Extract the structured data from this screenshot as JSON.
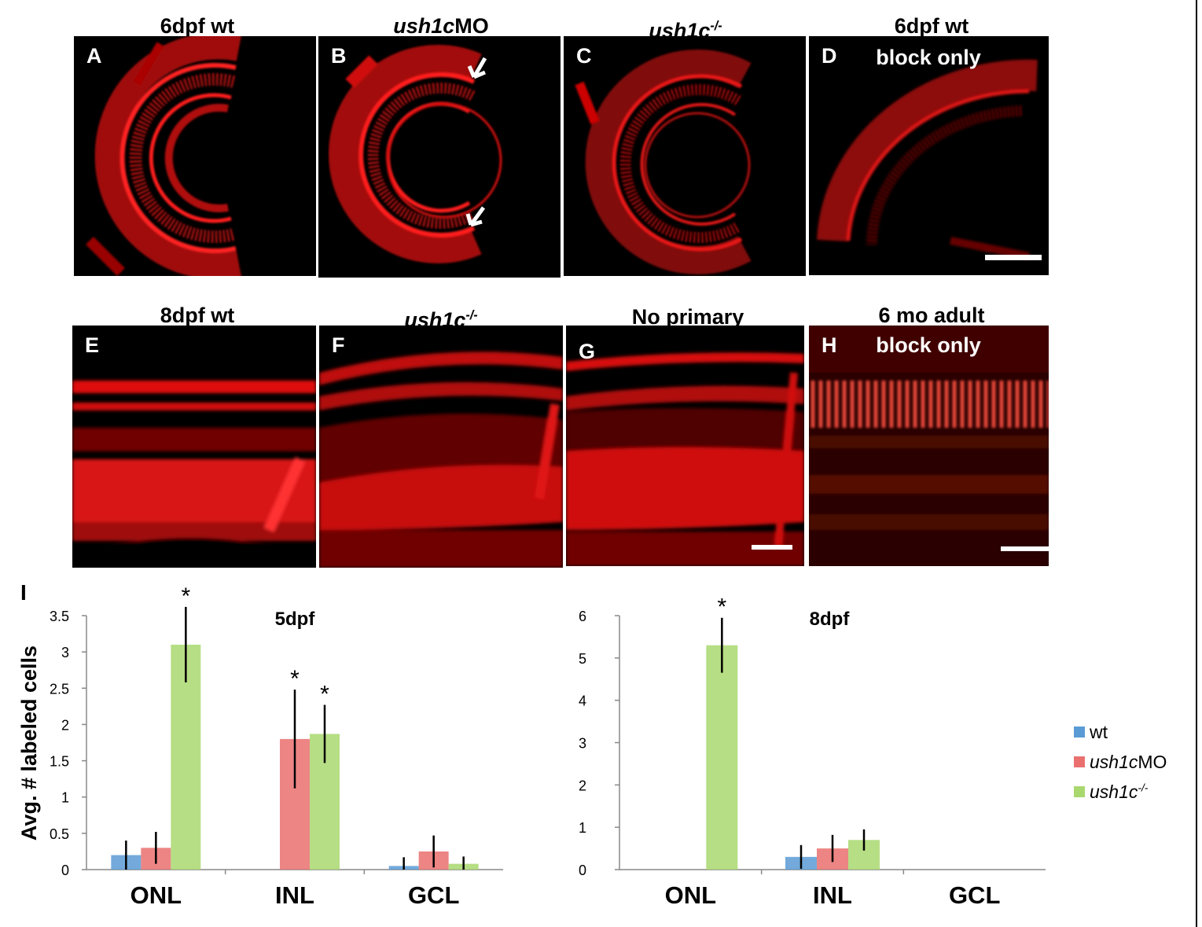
{
  "panels": [
    {
      "letter": "A",
      "title": "6dpf wt",
      "title_parts": [
        {
          "text": "6dpf wt",
          "italic": false
        }
      ],
      "overlay": ""
    },
    {
      "letter": "B",
      "title": "ush1cMO",
      "title_parts": [
        {
          "text": "ush1c",
          "italic": true
        },
        {
          "text": "MO",
          "italic": false
        }
      ],
      "overlay": ""
    },
    {
      "letter": "C",
      "title": "ush1c-/-",
      "title_parts": [
        {
          "text": "ush1c",
          "italic": true
        },
        {
          "text": "-/-",
          "italic": true,
          "sup": true
        }
      ],
      "overlay": ""
    },
    {
      "letter": "D",
      "title": "6dpf wt",
      "title_parts": [
        {
          "text": "6dpf wt",
          "italic": false
        }
      ],
      "overlay": "block only"
    },
    {
      "letter": "E",
      "title": "8dpf wt",
      "title_parts": [
        {
          "text": "8dpf wt",
          "italic": false
        }
      ],
      "overlay": ""
    },
    {
      "letter": "F",
      "title": "ush1c-/-",
      "title_parts": [
        {
          "text": "ush1c",
          "italic": true
        },
        {
          "text": "-/-",
          "italic": true,
          "sup": true
        }
      ],
      "overlay": ""
    },
    {
      "letter": "G",
      "title": "No primary",
      "title_parts": [
        {
          "text": "No primary",
          "italic": false
        }
      ],
      "overlay": ""
    },
    {
      "letter": "H",
      "title": "6 mo adult",
      "title_parts": [
        {
          "text": "6 mo adult",
          "italic": false
        }
      ],
      "overlay": "block only"
    }
  ],
  "figure_label_I": "I",
  "colors": {
    "wt": "#5b9bd5",
    "ush1cMO": "#e9706f",
    "ush1c_ko": "#a9d86e",
    "stain": "#e01010"
  },
  "chart_data": [
    {
      "type": "bar",
      "title": "5dpf",
      "ylabel": "Avg. # labeled cells",
      "categories": [
        "ONL",
        "INL",
        "GCL"
      ],
      "ylim": [
        0,
        3.5
      ],
      "yticks": [
        "0",
        "0.5",
        "1",
        "1.5",
        "2",
        "2.5",
        "3",
        "3.5"
      ],
      "series": [
        {
          "name": "wt",
          "values": [
            0.2,
            0,
            0.05
          ],
          "errors": [
            0.2,
            0,
            0.12
          ],
          "sig": [
            false,
            false,
            false
          ]
        },
        {
          "name": "ush1cMO",
          "values": [
            0.3,
            1.8,
            0.25
          ],
          "errors": [
            0.22,
            0.68,
            0.22
          ],
          "sig": [
            false,
            true,
            false
          ]
        },
        {
          "name": "ush1c-/-",
          "values": [
            3.1,
            1.87,
            0.08
          ],
          "errors": [
            0.52,
            0.4,
            0.1
          ],
          "sig": [
            true,
            true,
            false
          ]
        }
      ]
    },
    {
      "type": "bar",
      "title": "8dpf",
      "ylabel": "",
      "categories": [
        "ONL",
        "INL",
        "GCL"
      ],
      "ylim": [
        0,
        6
      ],
      "yticks": [
        "0",
        "1",
        "2",
        "3",
        "4",
        "5",
        "6"
      ],
      "series": [
        {
          "name": "wt",
          "values": [
            0,
            0.3,
            0
          ],
          "errors": [
            0,
            0.28,
            0
          ],
          "sig": [
            false,
            false,
            false
          ]
        },
        {
          "name": "ush1cMO",
          "values": [
            0,
            0.5,
            0
          ],
          "errors": [
            0,
            0.32,
            0
          ],
          "sig": [
            false,
            false,
            false
          ]
        },
        {
          "name": "ush1c-/-",
          "values": [
            5.3,
            0.7,
            0
          ],
          "errors": [
            0.65,
            0.25,
            0
          ],
          "sig": [
            true,
            false,
            false
          ]
        }
      ]
    }
  ],
  "legend": [
    {
      "name": "wt",
      "parts": [
        {
          "text": "wt",
          "italic": false
        }
      ],
      "color": "#5b9bd5"
    },
    {
      "name": "ush1cMO",
      "parts": [
        {
          "text": "ush1c",
          "italic": true
        },
        {
          "text": "MO",
          "italic": false
        }
      ],
      "color": "#e9706f"
    },
    {
      "name": "ush1c-/-",
      "parts": [
        {
          "text": "ush1c",
          "italic": true
        },
        {
          "text": "-/-",
          "italic": true,
          "sup": true
        }
      ],
      "color": "#a9d86e"
    }
  ],
  "sig_marker": "*"
}
